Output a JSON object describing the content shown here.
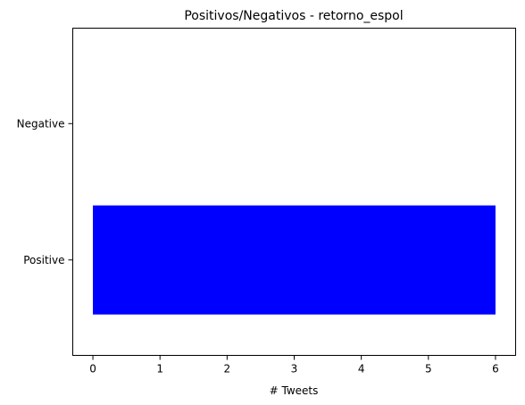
{
  "chart_data": {
    "type": "bar",
    "orientation": "horizontal",
    "title": "Positivos/Negativos - retorno_espol",
    "xlabel": "# Tweets",
    "ylabel": "",
    "categories": [
      "Positive",
      "Negative"
    ],
    "values": [
      6,
      0
    ],
    "bar_color": "#0000ff",
    "xlim": [
      -0.3,
      6.3
    ],
    "xticks": [
      0,
      1,
      2,
      3,
      4,
      5,
      6
    ],
    "grid": false,
    "legend": false
  }
}
